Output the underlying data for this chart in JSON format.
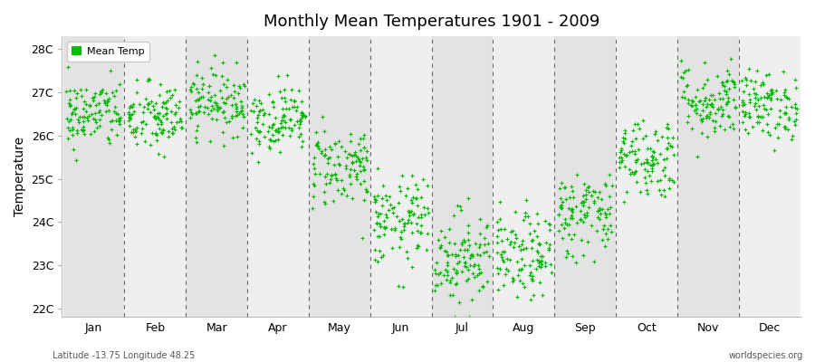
{
  "title": "Monthly Mean Temperatures 1901 - 2009",
  "ylabel": "Temperature",
  "bottom_left": "Latitude -13.75 Longitude 48.25",
  "bottom_right": "worldspecies.org",
  "legend_label": "Mean Temp",
  "dot_color": "#00bb00",
  "ylim": [
    21.8,
    28.3
  ],
  "yticks": [
    22,
    23,
    24,
    25,
    26,
    27,
    28
  ],
  "ytick_labels": [
    "22C",
    "23C",
    "24C",
    "25C",
    "26C",
    "27C",
    "28C"
  ],
  "months": [
    "Jan",
    "Feb",
    "Mar",
    "Apr",
    "May",
    "Jun",
    "Jul",
    "Aug",
    "Sep",
    "Oct",
    "Nov",
    "Dec"
  ],
  "monthly_means": [
    26.5,
    26.4,
    26.8,
    26.4,
    25.3,
    24.0,
    23.2,
    23.2,
    24.2,
    25.5,
    26.8,
    26.7
  ],
  "monthly_stds": [
    0.4,
    0.42,
    0.38,
    0.38,
    0.48,
    0.52,
    0.55,
    0.5,
    0.5,
    0.48,
    0.45,
    0.4
  ],
  "n_years": 109,
  "bg_color_dark": "#e3e3e3",
  "bg_color_light": "#efefef",
  "marker_size": 3,
  "marker_style": "+"
}
